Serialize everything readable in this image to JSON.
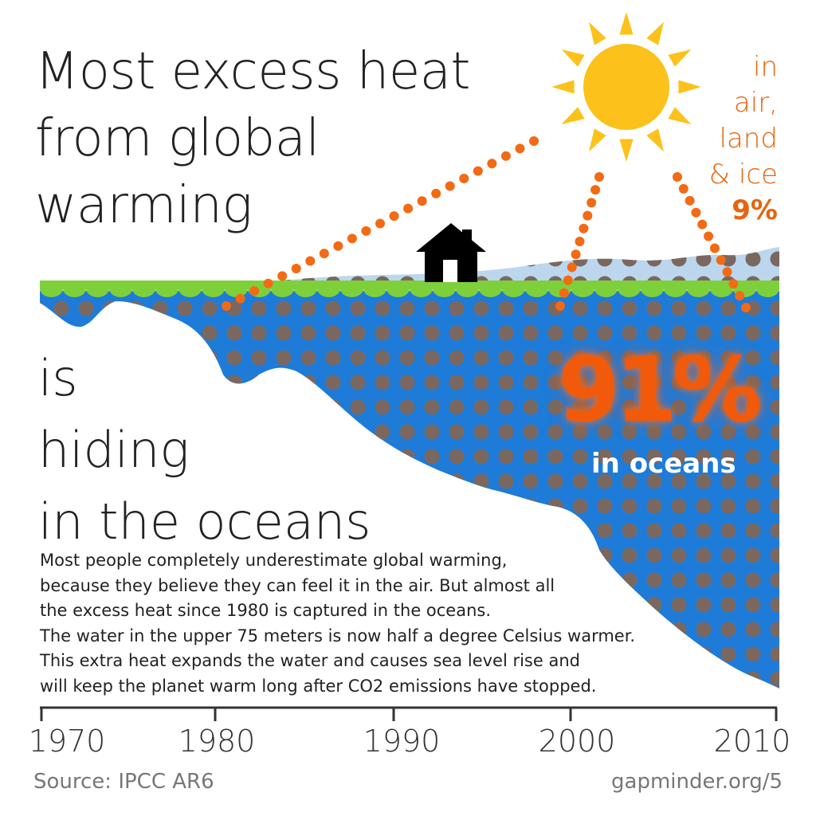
{
  "headline": {
    "line1": "Most excess heat",
    "line2": "from global",
    "line3": "warming",
    "line4": "is",
    "line5": "hiding",
    "line6": "in the oceans"
  },
  "other_share": {
    "line1": "in",
    "line2": "air,",
    "line3": "land",
    "line4": "& ice",
    "percent": "9%"
  },
  "ocean_share": {
    "percent": "91%",
    "label": "in oceans"
  },
  "body": [
    "Most people completely underestimate global warming,",
    "because they believe they can feel it in the air. But almost all",
    "the excess heat since 1980 is captured in the oceans.",
    "The water in the upper 75 meters is now half a degree Celsius warmer.",
    "This extra heat expands the water and causes sea level rise and",
    "will keep the planet warm long after CO2 emissions have stopped."
  ],
  "axis": {
    "ticks": [
      "1970",
      "1980",
      "1990",
      "2000",
      "2010"
    ]
  },
  "footer": {
    "source": "Source: IPCC AR6",
    "link": "gapminder.org/5"
  },
  "colors": {
    "ocean": "#1e7bd8",
    "ocean_dots": "#7a6860",
    "ground": "#7ed03a",
    "air": "#bcd6ee",
    "heat_dots": "#f26a14",
    "sun": "#fcc21b",
    "headline_text": "#222222",
    "accent_text": "#e8640c"
  },
  "icons": {
    "sun": "sun-icon",
    "house": "house-icon"
  }
}
